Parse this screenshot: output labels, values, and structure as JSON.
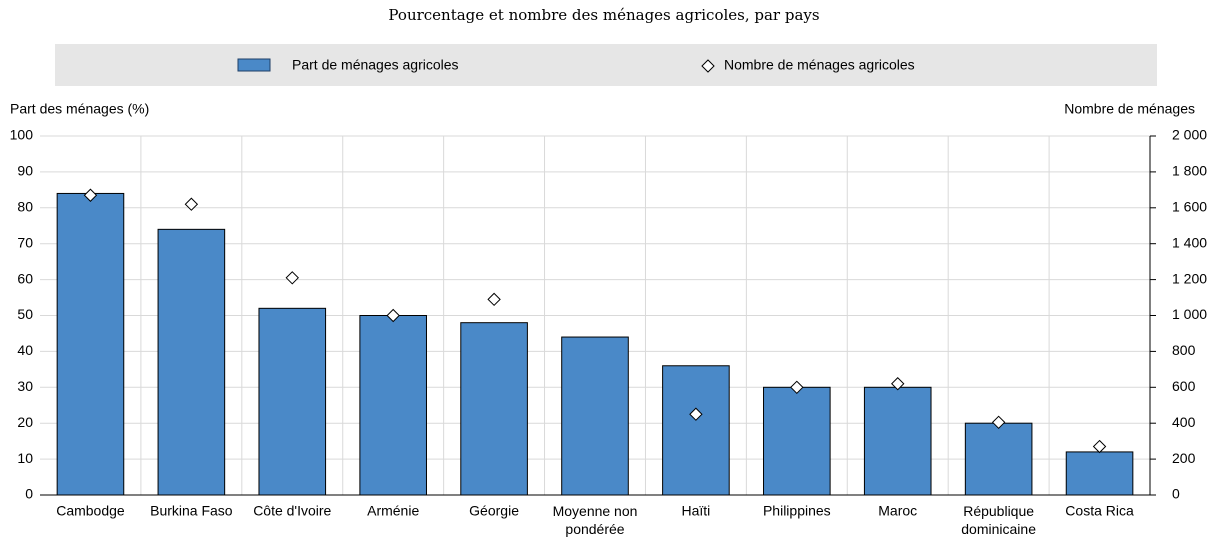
{
  "chart_data": {
    "type": "bar",
    "subtitle": "Pourcentage et nombre des ménages agricoles, par pays",
    "ylabel": "Part des ménages (%)",
    "y2label": "Nombre de ménages",
    "categories": [
      "Cambodge",
      "Burkina Faso",
      "Côte d'Ivoire",
      "Arménie",
      "Géorgie",
      "Moyenne non pondérée",
      "Haïti",
      "Philippines",
      "Maroc",
      "République dominicaine",
      "Costa Rica"
    ],
    "series": [
      {
        "name": "Part de ménages agricoles",
        "color": "#4a89c8",
        "values": [
          84,
          74,
          52,
          50,
          48,
          44,
          36,
          30,
          30,
          20,
          12
        ]
      },
      {
        "name": "Nombre de ménages agricoles",
        "color": "#ffffff",
        "axis": "y2",
        "values": [
          1670,
          1620,
          1210,
          1000,
          1090,
          null,
          450,
          600,
          620,
          405,
          270
        ]
      }
    ],
    "ylim": [
      0,
      100
    ],
    "yticks": [
      0,
      10,
      20,
      30,
      40,
      50,
      60,
      70,
      80,
      90,
      100
    ],
    "y2lim": [
      0,
      2000
    ],
    "y2ticks": [
      0,
      200,
      400,
      600,
      800,
      {
        "value": 1000,
        "label": "1 000"
      },
      {
        "value": 1200,
        "label": "1 200"
      },
      {
        "value": 1400,
        "label": "1 400"
      },
      {
        "value": 1600,
        "label": "1 600"
      },
      {
        "value": 1800,
        "label": "1 800"
      },
      {
        "value": 2000,
        "label": "2 000"
      }
    ],
    "grid": true
  }
}
